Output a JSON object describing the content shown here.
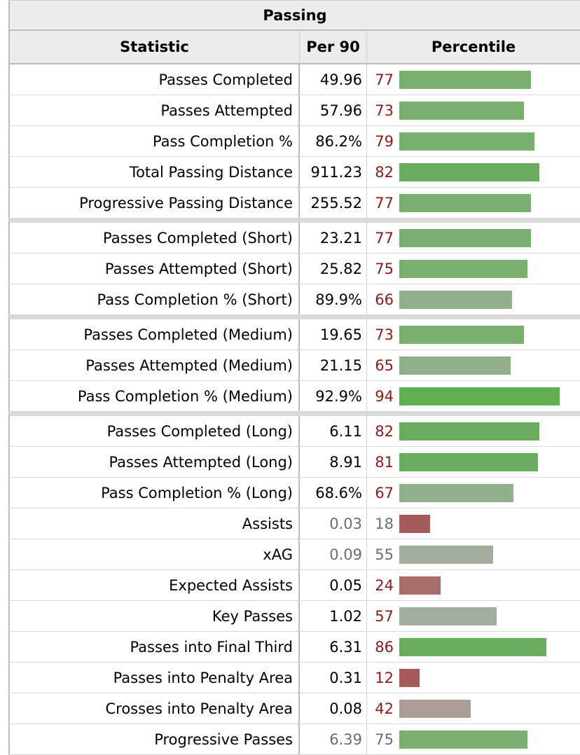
{
  "table": {
    "title": "Passing",
    "headers": {
      "statistic": "Statistic",
      "per90": "Per 90",
      "percentile": "Percentile"
    }
  },
  "chart_data": {
    "type": "bar",
    "title": "Passing",
    "xlabel": "Percentile",
    "ylabel": "Statistic",
    "xlim": [
      0,
      100
    ],
    "rows": [
      {
        "statistic": "Passes Completed",
        "per90": "49.96",
        "percentile": 77,
        "group": 1
      },
      {
        "statistic": "Passes Attempted",
        "per90": "57.96",
        "percentile": 73,
        "group": 1
      },
      {
        "statistic": "Pass Completion %",
        "per90": "86.2%",
        "percentile": 79,
        "group": 1
      },
      {
        "statistic": "Total Passing Distance",
        "per90": "911.23",
        "percentile": 82,
        "group": 1
      },
      {
        "statistic": "Progressive Passing Distance",
        "per90": "255.52",
        "percentile": 77,
        "group": 1
      },
      {
        "statistic": "Passes Completed (Short)",
        "per90": "23.21",
        "percentile": 77,
        "group": 2
      },
      {
        "statistic": "Passes Attempted (Short)",
        "per90": "25.82",
        "percentile": 75,
        "group": 2
      },
      {
        "statistic": "Pass Completion % (Short)",
        "per90": "89.9%",
        "percentile": 66,
        "group": 2
      },
      {
        "statistic": "Passes Completed (Medium)",
        "per90": "19.65",
        "percentile": 73,
        "group": 3
      },
      {
        "statistic": "Passes Attempted (Medium)",
        "per90": "21.15",
        "percentile": 65,
        "group": 3
      },
      {
        "statistic": "Pass Completion % (Medium)",
        "per90": "92.9%",
        "percentile": 94,
        "group": 3
      },
      {
        "statistic": "Passes Completed (Long)",
        "per90": "6.11",
        "percentile": 82,
        "group": 4
      },
      {
        "statistic": "Passes Attempted (Long)",
        "per90": "8.91",
        "percentile": 81,
        "group": 4
      },
      {
        "statistic": "Pass Completion % (Long)",
        "per90": "68.6%",
        "percentile": 67,
        "group": 4
      },
      {
        "statistic": "Assists",
        "per90": "0.03",
        "percentile": 18,
        "group": 4,
        "dim_value": true
      },
      {
        "statistic": "xAG",
        "per90": "0.09",
        "percentile": 55,
        "group": 4,
        "dim_value": true
      },
      {
        "statistic": "Expected Assists",
        "per90": "0.05",
        "percentile": 24,
        "group": 4
      },
      {
        "statistic": "Key Passes",
        "per90": "1.02",
        "percentile": 57,
        "group": 4
      },
      {
        "statistic": "Passes into Final Third",
        "per90": "6.31",
        "percentile": 86,
        "group": 4
      },
      {
        "statistic": "Passes into Penalty Area",
        "per90": "0.31",
        "percentile": 12,
        "group": 4
      },
      {
        "statistic": "Crosses into Penalty Area",
        "per90": "0.08",
        "percentile": 42,
        "group": 4
      },
      {
        "statistic": "Progressive Passes",
        "per90": "6.39",
        "percentile": 75,
        "group": 4,
        "dim_value": true
      }
    ]
  }
}
